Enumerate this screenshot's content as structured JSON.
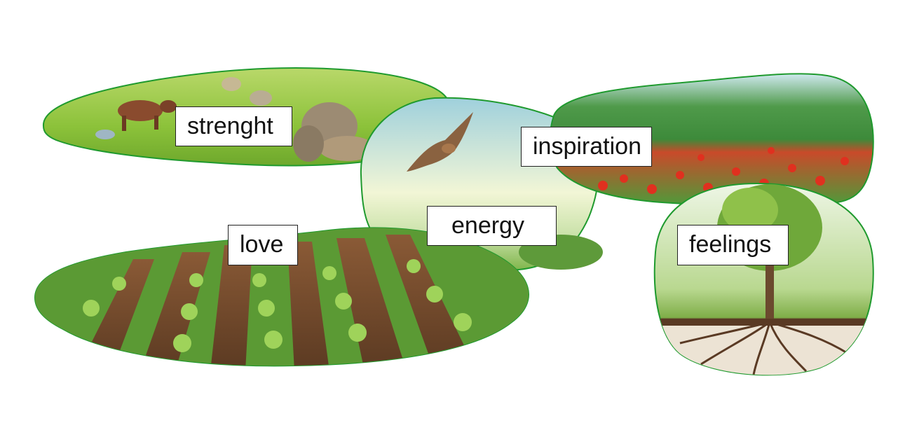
{
  "labels": {
    "strenght": "strenght",
    "inspiration": "inspiration",
    "energy": "energy",
    "love": "love",
    "feelings": "feelings"
  },
  "colors": {
    "outline": "#1f9a2e",
    "grass": "#8dc63f",
    "soil": "#7a4a2a",
    "poppy": "#d8261c",
    "sky": "#cfe8f2"
  }
}
